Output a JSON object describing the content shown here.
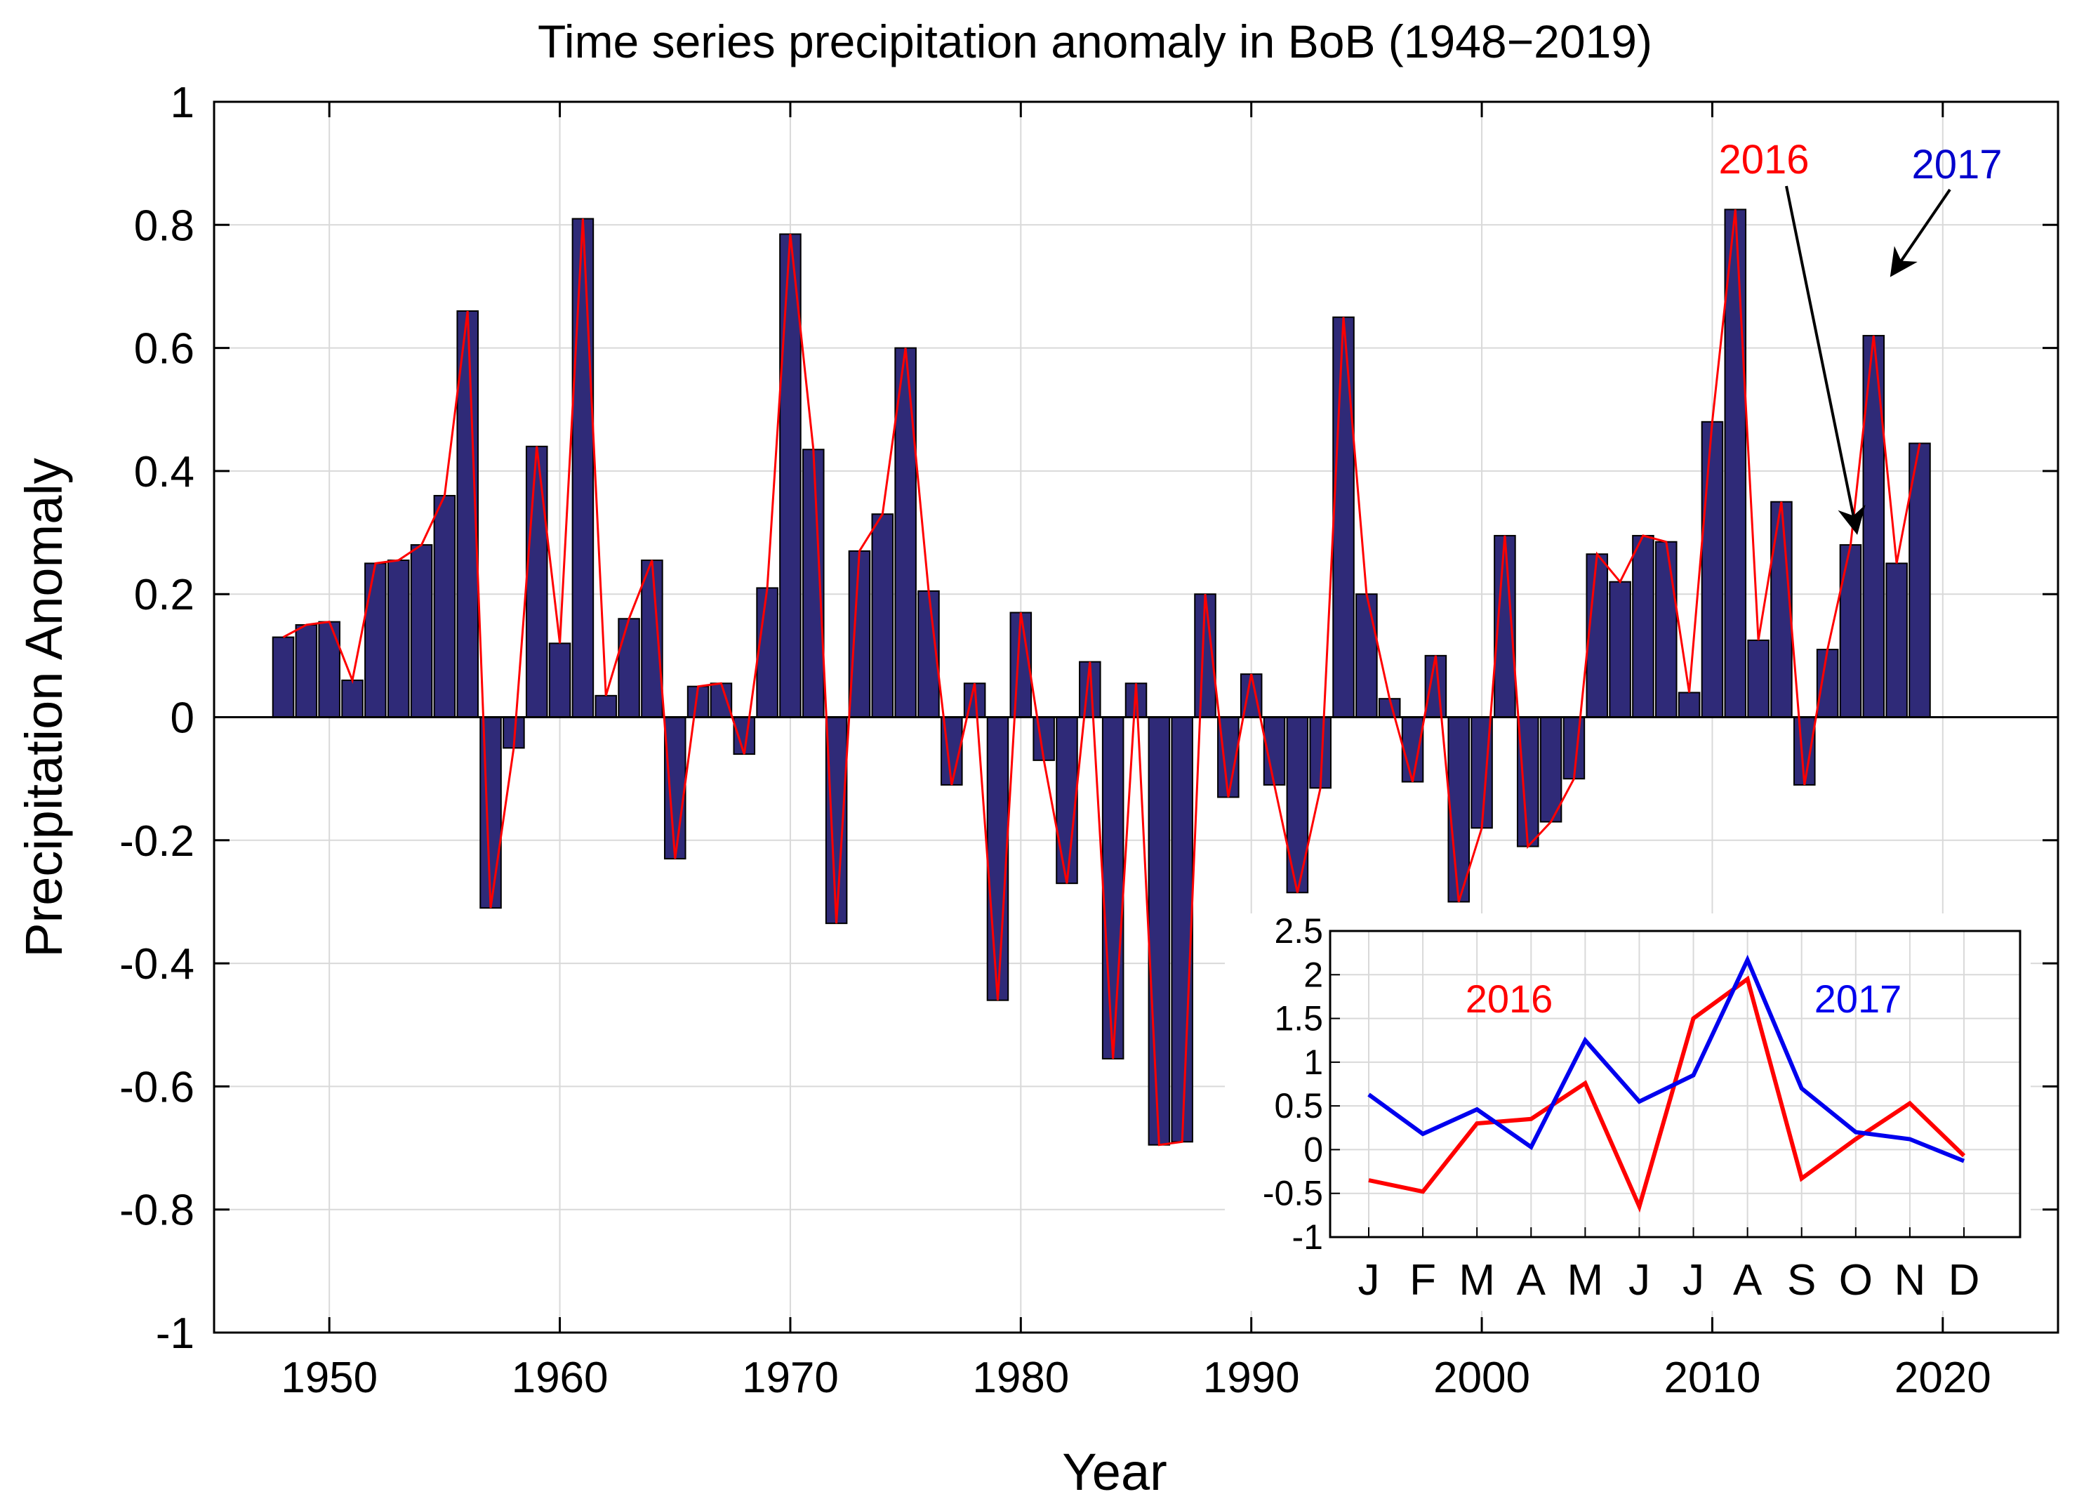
{
  "chart_data": [
    {
      "type": "bar",
      "title": "Time series precipitation anomaly in BoB (1948−2019)",
      "xlabel": "Year",
      "ylabel": "Precipitation Anomaly",
      "xlim": [
        1945,
        2025
      ],
      "ylim": [
        -1,
        1
      ],
      "grid": true,
      "x_ticks": [
        1950,
        1960,
        1970,
        1980,
        1990,
        2000,
        2010,
        2020
      ],
      "y_ticks": [
        -1,
        -0.8,
        -0.6,
        -0.4,
        -0.2,
        0,
        0.2,
        0.4,
        0.6,
        0.8,
        1
      ],
      "years": [
        1948,
        1949,
        1950,
        1951,
        1952,
        1953,
        1954,
        1955,
        1956,
        1957,
        1958,
        1959,
        1960,
        1961,
        1962,
        1963,
        1964,
        1965,
        1966,
        1967,
        1968,
        1969,
        1970,
        1971,
        1972,
        1973,
        1974,
        1975,
        1976,
        1977,
        1978,
        1979,
        1980,
        1981,
        1982,
        1983,
        1984,
        1985,
        1986,
        1987,
        1988,
        1989,
        1990,
        1991,
        1992,
        1993,
        1994,
        1995,
        1996,
        1997,
        1998,
        1999,
        2000,
        2001,
        2002,
        2003,
        2004,
        2005,
        2006,
        2007,
        2008,
        2009,
        2010,
        2011,
        2012,
        2013,
        2014,
        2015,
        2016,
        2017,
        2018,
        2019
      ],
      "values": [
        0.13,
        0.15,
        0.155,
        0.06,
        0.25,
        0.255,
        0.28,
        0.36,
        0.66,
        -0.31,
        -0.05,
        0.44,
        0.12,
        0.81,
        0.035,
        0.16,
        0.255,
        -0.23,
        0.05,
        0.055,
        -0.06,
        0.21,
        0.785,
        0.435,
        -0.335,
        0.27,
        0.33,
        0.6,
        0.205,
        -0.11,
        0.055,
        -0.46,
        0.17,
        -0.07,
        -0.27,
        0.09,
        -0.555,
        0.055,
        -0.695,
        -0.69,
        0.2,
        -0.13,
        0.07,
        -0.11,
        -0.285,
        -0.115,
        0.65,
        0.2,
        0.03,
        -0.105,
        0.1,
        -0.3,
        -0.18,
        0.295,
        -0.21,
        -0.17,
        -0.1,
        0.265,
        0.22,
        0.295,
        0.285,
        0.04,
        0.48,
        0.825,
        0.125,
        0.35,
        -0.11,
        0.11,
        0.28,
        0.62,
        0.25,
        0.445
      ],
      "bar_color": "#2f2a78",
      "line_color": "#ff0000",
      "annotations": [
        {
          "text": "2016",
          "color": "#ff0000",
          "target_year": 2016
        },
        {
          "text": "2017",
          "color": "#0000cc",
          "target_year": 2017
        }
      ]
    },
    {
      "type": "line",
      "title": "",
      "categories": [
        "J",
        "F",
        "M",
        "A",
        "M",
        "J",
        "J",
        "A",
        "S",
        "O",
        "N",
        "D"
      ],
      "ylim": [
        -1,
        2.5
      ],
      "y_ticks": [
        -1,
        -0.5,
        0,
        0.5,
        1,
        1.5,
        2,
        2.5
      ],
      "grid": true,
      "series": [
        {
          "name": "2016",
          "color": "#ff0000",
          "values": [
            -0.35,
            -0.48,
            0.3,
            0.35,
            0.76,
            -0.65,
            1.5,
            1.95,
            -0.33,
            0.12,
            0.53,
            -0.07
          ]
        },
        {
          "name": "2017",
          "color": "#0000ee",
          "values": [
            0.63,
            0.18,
            0.46,
            0.03,
            1.25,
            0.55,
            0.85,
            2.17,
            0.7,
            0.2,
            0.12,
            -0.13
          ]
        }
      ]
    }
  ]
}
